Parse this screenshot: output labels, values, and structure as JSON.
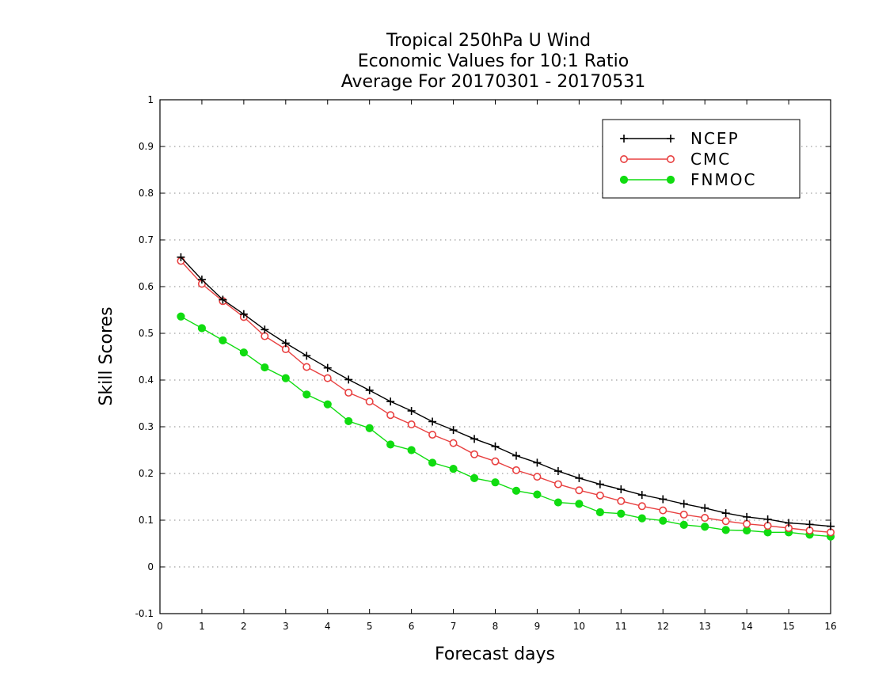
{
  "chart_data": {
    "type": "line",
    "title": [
      "Tropical 250hPa U Wind",
      "Economic Values for 10:1 Ratio",
      "Average For 20170301 - 20170531"
    ],
    "xlabel": "Forecast days",
    "ylabel": "Skill Scores",
    "xlim": [
      0,
      16
    ],
    "ylim": [
      -0.1,
      1
    ],
    "xticks": [
      0,
      1,
      2,
      3,
      4,
      5,
      6,
      7,
      8,
      9,
      10,
      11,
      12,
      13,
      14,
      15,
      16
    ],
    "yticks": [
      -0.1,
      0,
      0.1,
      0.2,
      0.3,
      0.4,
      0.5,
      0.6,
      0.7,
      0.8,
      0.9,
      1
    ],
    "ytick_labels": [
      "-0.1",
      "0",
      "0.1",
      "0.2",
      "0.3",
      "0.4",
      "0.5",
      "0.6",
      "0.7",
      "0.8",
      "0.9",
      "1"
    ],
    "grid": "horizontal dotted",
    "legend_position": "top-right",
    "x": [
      0.5,
      1,
      1.5,
      2,
      2.5,
      3,
      3.5,
      4,
      4.5,
      5,
      5.5,
      6,
      6.5,
      7,
      7.5,
      8,
      8.5,
      9,
      9.5,
      10,
      10.5,
      11,
      11.5,
      12,
      12.5,
      13,
      13.5,
      14,
      14.5,
      15,
      15.5,
      16
    ],
    "series": [
      {
        "name": "NCEP",
        "color": "#000000",
        "marker": "plus",
        "values": [
          0.663,
          0.615,
          0.572,
          0.541,
          0.508,
          0.479,
          0.452,
          0.426,
          0.401,
          0.378,
          0.354,
          0.334,
          0.311,
          0.293,
          0.274,
          0.258,
          0.238,
          0.223,
          0.205,
          0.19,
          0.177,
          0.166,
          0.154,
          0.145,
          0.135,
          0.126,
          0.115,
          0.107,
          0.102,
          0.094,
          0.091,
          0.087
        ]
      },
      {
        "name": "CMC",
        "color": "#e84040",
        "marker": "open-circle",
        "values": [
          0.655,
          0.606,
          0.569,
          0.535,
          0.494,
          0.466,
          0.428,
          0.404,
          0.373,
          0.354,
          0.325,
          0.305,
          0.283,
          0.265,
          0.241,
          0.226,
          0.207,
          0.193,
          0.177,
          0.164,
          0.153,
          0.141,
          0.13,
          0.121,
          0.112,
          0.105,
          0.098,
          0.092,
          0.088,
          0.083,
          0.078,
          0.074
        ]
      },
      {
        "name": "FNMOC",
        "color": "#10dc10",
        "marker": "filled-circle",
        "values": [
          0.536,
          0.511,
          0.485,
          0.459,
          0.427,
          0.404,
          0.369,
          0.348,
          0.312,
          0.297,
          0.262,
          0.25,
          0.223,
          0.21,
          0.19,
          0.181,
          0.163,
          0.155,
          0.138,
          0.135,
          0.117,
          0.114,
          0.104,
          0.099,
          0.09,
          0.086,
          0.079,
          0.078,
          0.074,
          0.074,
          0.069,
          0.065
        ]
      }
    ]
  }
}
